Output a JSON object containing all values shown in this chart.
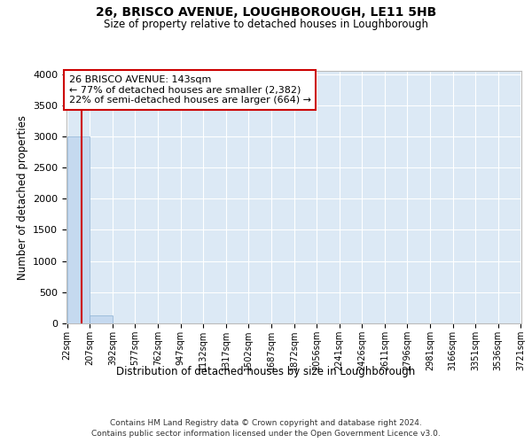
{
  "title1": "26, BRISCO AVENUE, LOUGHBOROUGH, LE11 5HB",
  "title2": "Size of property relative to detached houses in Loughborough",
  "xlabel": "Distribution of detached houses by size in Loughborough",
  "ylabel": "Number of detached properties",
  "bin_edges": [
    22,
    207,
    392,
    577,
    762,
    947,
    1132,
    1317,
    1502,
    1687,
    1872,
    2056,
    2241,
    2426,
    2611,
    2796,
    2981,
    3166,
    3351,
    3536,
    3721
  ],
  "bar_heights": [
    3000,
    130,
    0,
    0,
    0,
    0,
    0,
    0,
    0,
    0,
    0,
    0,
    0,
    0,
    0,
    0,
    0,
    0,
    0,
    0
  ],
  "bar_color": "#c5d9ef",
  "bar_edge_color": "#8ab0d4",
  "property_value": 143,
  "property_label": "26 BRISCO AVENUE: 143sqm",
  "annotation_line1": "← 77% of detached houses are smaller (2,382)",
  "annotation_line2": "22% of semi-detached houses are larger (664) →",
  "vline_color": "#cc0000",
  "ylim": [
    0,
    4050
  ],
  "yticks": [
    0,
    500,
    1000,
    1500,
    2000,
    2500,
    3000,
    3500,
    4000
  ],
  "bg_color": "#dce9f5",
  "grid_color": "#ffffff",
  "fig_bg": "#ffffff",
  "footer1": "Contains HM Land Registry data © Crown copyright and database right 2024.",
  "footer2": "Contains public sector information licensed under the Open Government Licence v3.0."
}
